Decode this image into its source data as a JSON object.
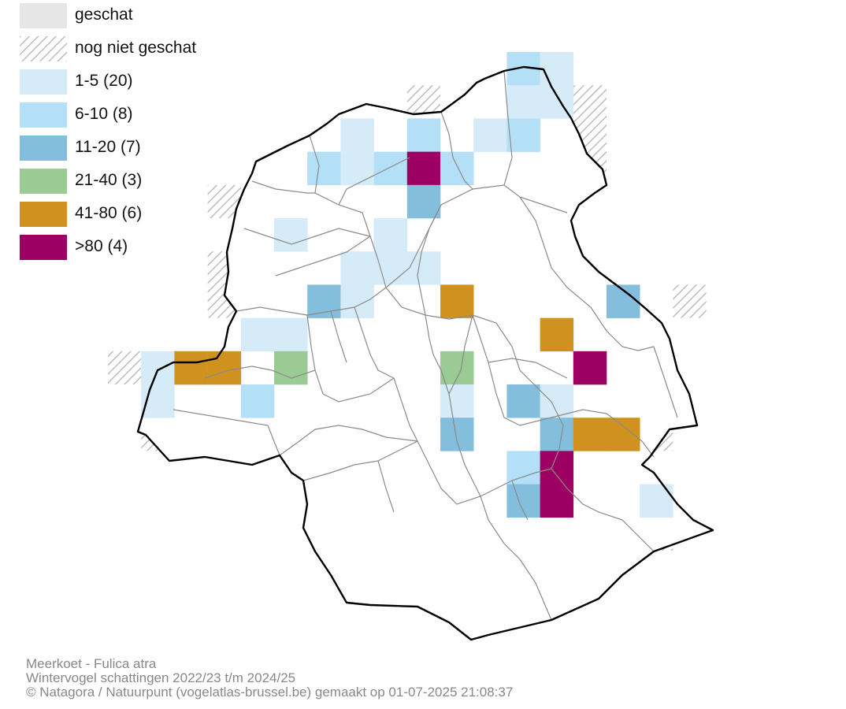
{
  "legend": {
    "items": [
      {
        "label": "geschat",
        "color": "#e6e6e6",
        "pattern": "solid"
      },
      {
        "label": "nog niet geschat",
        "color": "#bdbdbd",
        "pattern": "hatch"
      },
      {
        "label": "1-5 (20)",
        "color": "#d6ebf8",
        "pattern": "solid"
      },
      {
        "label": "6-10 (8)",
        "color": "#b4e0f7",
        "pattern": "solid"
      },
      {
        "label": "11-20 (7)",
        "color": "#84bedd",
        "pattern": "solid"
      },
      {
        "label": "21-40 (3)",
        "color": "#9bcb94",
        "pattern": "solid"
      },
      {
        "label": "41-80 (6)",
        "color": "#cf921f",
        "pattern": "solid"
      },
      {
        "label": ">80 (4)",
        "color": "#9c0062",
        "pattern": "solid"
      }
    ]
  },
  "footer": {
    "species": "Meerkoet - Fulica atra",
    "period": "Wintervogel schattingen 2022/23 t/m 2024/25",
    "credit": "© Natagora / Natuurpunt (vogelatlas-brussel.be) gemaakt op 01-07-2025 21:08:37"
  }
}
